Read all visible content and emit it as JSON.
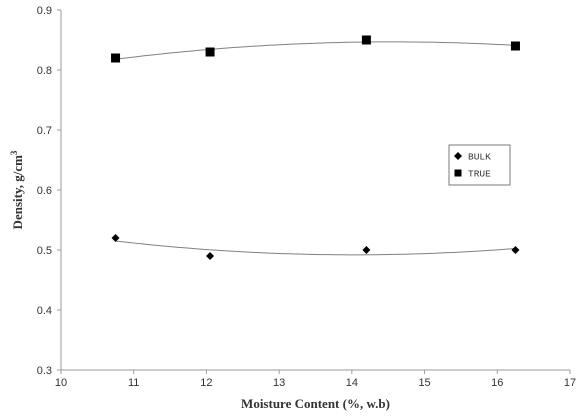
{
  "chart_data": {
    "type": "scatter",
    "title": "",
    "xlabel": "Moisture Content (%, w.b)",
    "ylabel": "Density, g/cm",
    "ylabel_superscript": "3",
    "xlim": [
      10,
      17
    ],
    "ylim": [
      0.3,
      0.9
    ],
    "x_ticks": [
      "10",
      "11",
      "12",
      "13",
      "14",
      "15",
      "16",
      "17"
    ],
    "y_ticks": [
      "0.3",
      "0.4",
      "0.5",
      "0.6",
      "0.7",
      "0.8",
      "0.9"
    ],
    "grid": false,
    "legend_position": "right",
    "series": [
      {
        "name": "BULK",
        "marker": "diamond",
        "color": "#000000",
        "trendline": "polynomial-2",
        "x": [
          10.75,
          12.05,
          14.2,
          16.25
        ],
        "y": [
          0.52,
          0.49,
          0.5,
          0.5
        ]
      },
      {
        "name": "TRUE",
        "marker": "square",
        "color": "#000000",
        "trendline": "polynomial-2",
        "x": [
          10.75,
          12.05,
          14.2,
          16.25
        ],
        "y": [
          0.82,
          0.83,
          0.85,
          0.84
        ]
      }
    ]
  }
}
